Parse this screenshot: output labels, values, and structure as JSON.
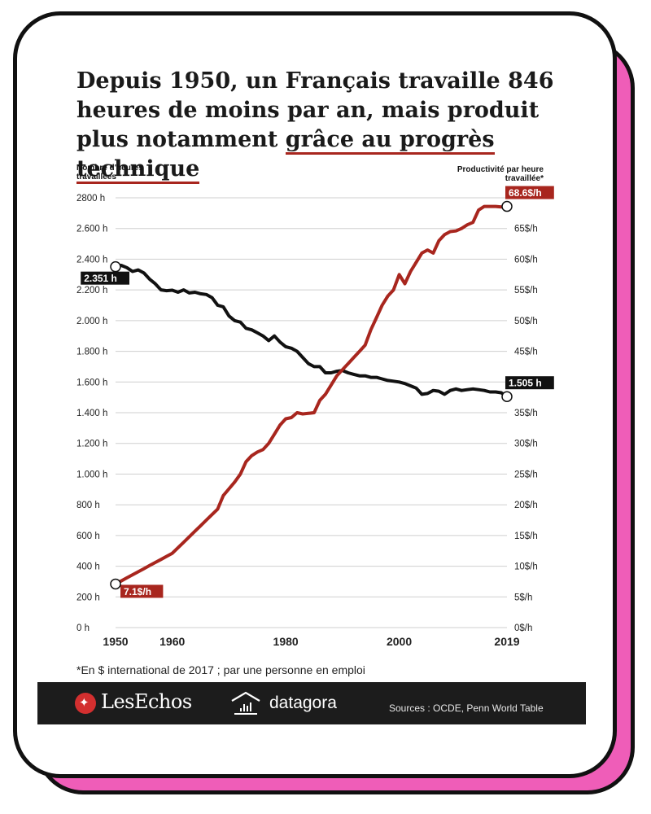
{
  "title_part1": "Depuis 1950, un Français travaille 846 heures de moins par an, mais produit plus notamment ",
  "title_highlight": "grâce au progrès technique",
  "left_axis_title": "Nombre d'heures travaillées",
  "right_axis_title": "Productivité par heure travaillée*",
  "footnote": "*En $ international de 2017 ; par une personne en emploi",
  "footer": {
    "brand1": "LesEchos",
    "brand2": "datagora",
    "sources": "Sources : OCDE, Penn World Table"
  },
  "colors": {
    "hours": "#111111",
    "productivity": "#a8261e",
    "card_shadow": "#ef5db8"
  },
  "chart_data": {
    "type": "line",
    "title": "Depuis 1950, un Français travaille 846 heures de moins par an, mais produit plus notamment grâce au progrès technique",
    "left_axis": {
      "label": "Nombre d'heures travaillées",
      "ylim": [
        0,
        2800
      ],
      "ticks": [
        0,
        200,
        400,
        600,
        800,
        1000,
        1200,
        1400,
        1600,
        1800,
        2000,
        2200,
        2400,
        2600,
        2800
      ],
      "tick_labels": [
        "0 h",
        "200 h",
        "400 h",
        "600 h",
        "800 h",
        "1.000 h",
        "1.200 h",
        "1.400 h",
        "1.600 h",
        "1.800 h",
        "2.000 h",
        "2.200 h",
        "2.400 h",
        "2.600 h",
        "2800 h"
      ]
    },
    "right_axis": {
      "label": "Productivité par heure travaillée*",
      "ylim": [
        0,
        70
      ],
      "ticks": [
        0,
        5,
        10,
        15,
        20,
        25,
        30,
        35,
        40,
        45,
        50,
        55,
        60,
        65
      ],
      "tick_labels": [
        "0$/h",
        "5$/h",
        "10$/h",
        "15$/h",
        "20$/h",
        "25$/h",
        "30$/h",
        "35$/h",
        "40$/h",
        "45$/h",
        "50$/h",
        "55$/h",
        "60$/h",
        "65$/h"
      ]
    },
    "x_ticks": [
      1950,
      1960,
      1980,
      2000,
      2019
    ],
    "xlim": [
      1950,
      2019
    ],
    "grid": true,
    "series": [
      {
        "name": "Nombre d'heures travaillées",
        "axis": "left",
        "x": [
          1950,
          1951,
          1952,
          1953,
          1954,
          1955,
          1956,
          1957,
          1958,
          1959,
          1960,
          1961,
          1962,
          1963,
          1964,
          1965,
          1966,
          1967,
          1968,
          1969,
          1970,
          1971,
          1972,
          1973,
          1974,
          1975,
          1976,
          1977,
          1978,
          1979,
          1980,
          1981,
          1982,
          1983,
          1984,
          1985,
          1986,
          1987,
          1988,
          1989,
          1990,
          1991,
          1992,
          1993,
          1994,
          1995,
          1996,
          1997,
          1998,
          1999,
          2000,
          2001,
          2002,
          2003,
          2004,
          2005,
          2006,
          2007,
          2008,
          2009,
          2010,
          2011,
          2012,
          2013,
          2014,
          2015,
          2016,
          2017,
          2018,
          2019
        ],
        "values": [
          2351,
          2360,
          2345,
          2320,
          2330,
          2310,
          2270,
          2240,
          2200,
          2195,
          2198,
          2185,
          2200,
          2180,
          2185,
          2175,
          2170,
          2150,
          2100,
          2090,
          2030,
          2000,
          1990,
          1950,
          1940,
          1920,
          1900,
          1870,
          1900,
          1860,
          1830,
          1820,
          1800,
          1760,
          1720,
          1700,
          1700,
          1660,
          1660,
          1670,
          1675,
          1660,
          1650,
          1640,
          1640,
          1630,
          1630,
          1620,
          1610,
          1605,
          1600,
          1590,
          1575,
          1560,
          1520,
          1525,
          1545,
          1540,
          1520,
          1545,
          1555,
          1545,
          1550,
          1555,
          1550,
          1545,
          1535,
          1535,
          1530,
          1505
        ],
        "start_label": "2.351 h",
        "end_label": "1.505 h"
      },
      {
        "name": "Productivité par heure travaillée*",
        "axis": "right",
        "x": [
          1950,
          1951,
          1952,
          1953,
          1954,
          1955,
          1956,
          1957,
          1958,
          1959,
          1960,
          1961,
          1962,
          1963,
          1964,
          1965,
          1966,
          1967,
          1968,
          1969,
          1970,
          1971,
          1972,
          1973,
          1974,
          1975,
          1976,
          1977,
          1978,
          1979,
          1980,
          1981,
          1982,
          1983,
          1984,
          1985,
          1986,
          1987,
          1988,
          1989,
          1990,
          1991,
          1992,
          1993,
          1994,
          1995,
          1996,
          1997,
          1998,
          1999,
          2000,
          2001,
          2002,
          2003,
          2004,
          2005,
          2006,
          2007,
          2008,
          2009,
          2010,
          2011,
          2012,
          2013,
          2014,
          2015,
          2016,
          2017,
          2018,
          2019
        ],
        "values": [
          7.1,
          7.6,
          8.1,
          8.6,
          9.1,
          9.6,
          10.1,
          10.6,
          11.1,
          11.6,
          12.1,
          13.0,
          13.9,
          14.8,
          15.7,
          16.6,
          17.5,
          18.4,
          19.3,
          21.5,
          22.6,
          23.7,
          25.0,
          27.0,
          28.0,
          28.6,
          29.0,
          30.0,
          31.5,
          33.0,
          34.0,
          34.2,
          35.0,
          34.8,
          34.9,
          35.0,
          37.0,
          38.0,
          39.5,
          41.0,
          42.0,
          43.0,
          44.0,
          45.0,
          46.0,
          48.5,
          50.5,
          52.5,
          54.0,
          55.0,
          57.5,
          56.0,
          58.0,
          59.5,
          61.0,
          61.5,
          61.0,
          63.0,
          64.0,
          64.5,
          64.6,
          65.0,
          65.6,
          66.0,
          68.0,
          68.6,
          68.6,
          68.6,
          68.5,
          68.6
        ],
        "start_label": "7.1$/h",
        "end_label": "68.6$/h"
      }
    ]
  }
}
